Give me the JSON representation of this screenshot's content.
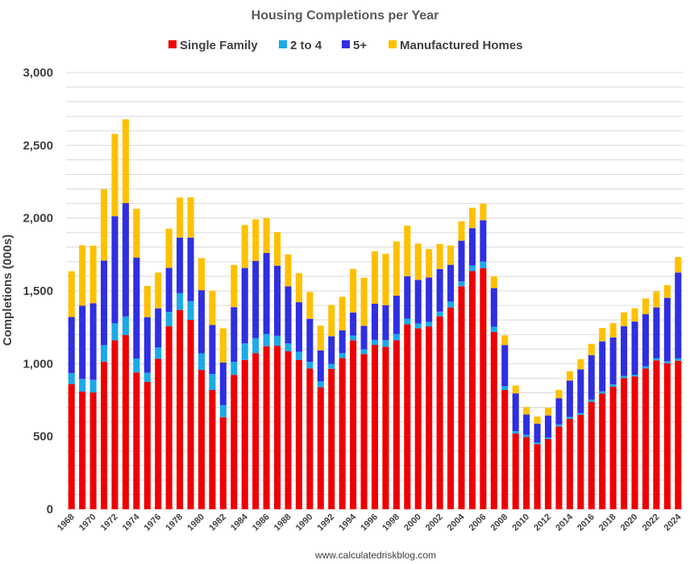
{
  "chart_data": {
    "type": "bar",
    "stacked": true,
    "title": "Housing Completions per Year",
    "ylabel": "Completions (000s)",
    "xlabel": "",
    "ylim": [
      0,
      3000
    ],
    "yticks": [
      0,
      500,
      1000,
      1500,
      2000,
      2500,
      3000
    ],
    "ytick_labels": [
      "0",
      "500",
      "1,000",
      "1,500",
      "2,000",
      "2,500",
      "3,000"
    ],
    "grid": true,
    "legend_position": "top",
    "categories": [
      "1968",
      "1969",
      "1970",
      "1971",
      "1972",
      "1973",
      "1974",
      "1975",
      "1976",
      "1977",
      "1978",
      "1979",
      "1980",
      "1981",
      "1982",
      "1983",
      "1984",
      "1985",
      "1986",
      "1987",
      "1988",
      "1989",
      "1990",
      "1991",
      "1992",
      "1993",
      "1994",
      "1995",
      "1996",
      "1997",
      "1998",
      "1999",
      "2000",
      "2001",
      "2002",
      "2003",
      "2004",
      "2005",
      "2006",
      "2007",
      "2008",
      "2009",
      "2010",
      "2011",
      "2012",
      "2013",
      "2014",
      "2015",
      "2016",
      "2017",
      "2018",
      "2019",
      "2020",
      "2021",
      "2022",
      "2023",
      "2024"
    ],
    "xtick_labels": [
      "1968",
      "1970",
      "1972",
      "1974",
      "1976",
      "1978",
      "1980",
      "1982",
      "1984",
      "1986",
      "1988",
      "1990",
      "1992",
      "1994",
      "1996",
      "1998",
      "2000",
      "2002",
      "2004",
      "2006",
      "2008",
      "2010",
      "2012",
      "2014",
      "2016",
      "2018",
      "2020",
      "2022",
      "2024"
    ],
    "series": [
      {
        "name": "Single Family",
        "color": "#ee0000",
        "values": [
          860,
          808,
          802,
          1014,
          1160,
          1197,
          940,
          875,
          1034,
          1258,
          1369,
          1301,
          957,
          819,
          632,
          923,
          1025,
          1072,
          1120,
          1123,
          1085,
          1026,
          966,
          838,
          964,
          1039,
          1160,
          1066,
          1129,
          1116,
          1160,
          1270,
          1242,
          1256,
          1325,
          1386,
          1532,
          1636,
          1655,
          1218,
          819,
          520,
          496,
          447,
          483,
          569,
          620,
          648,
          738,
          795,
          841,
          901,
          912,
          966,
          1022,
          1003,
          1020
        ]
      },
      {
        "name": "2 to 4",
        "color": "#1ca9e8",
        "values": [
          75,
          87,
          87,
          113,
          117,
          127,
          95,
          63,
          77,
          97,
          115,
          128,
          114,
          110,
          83,
          90,
          114,
          103,
          84,
          68,
          54,
          56,
          46,
          40,
          34,
          33,
          33,
          33,
          34,
          46,
          44,
          39,
          34,
          31,
          32,
          40,
          33,
          38,
          46,
          36,
          26,
          17,
          15,
          11,
          9,
          13,
          13,
          13,
          15,
          15,
          16,
          14,
          12,
          16,
          14,
          14,
          16
        ]
      },
      {
        "name": "5+",
        "color": "#2f2fe0",
        "values": [
          385,
          503,
          526,
          581,
          736,
          779,
          694,
          381,
          269,
          303,
          382,
          436,
          434,
          337,
          293,
          375,
          518,
          531,
          556,
          482,
          392,
          340,
          296,
          213,
          190,
          157,
          158,
          161,
          249,
          240,
          263,
          291,
          299,
          305,
          293,
          253,
          280,
          257,
          284,
          265,
          283,
          259,
          140,
          130,
          152,
          181,
          251,
          300,
          305,
          343,
          323,
          342,
          365,
          358,
          350,
          435,
          590
        ]
      },
      {
        "name": "Manufactured Homes",
        "color": "#ffc000",
        "values": [
          315,
          415,
          395,
          490,
          565,
          575,
          335,
          215,
          245,
          270,
          275,
          278,
          220,
          235,
          235,
          290,
          295,
          285,
          240,
          230,
          220,
          200,
          185,
          170,
          215,
          230,
          300,
          330,
          360,
          353,
          373,
          348,
          250,
          195,
          172,
          133,
          133,
          140,
          115,
          80,
          66,
          54,
          50,
          49,
          53,
          56,
          64,
          70,
          78,
          92,
          98,
          95,
          92,
          108,
          110,
          88,
          106
        ]
      }
    ]
  },
  "source_text": "www.calculatedriskblog.com"
}
